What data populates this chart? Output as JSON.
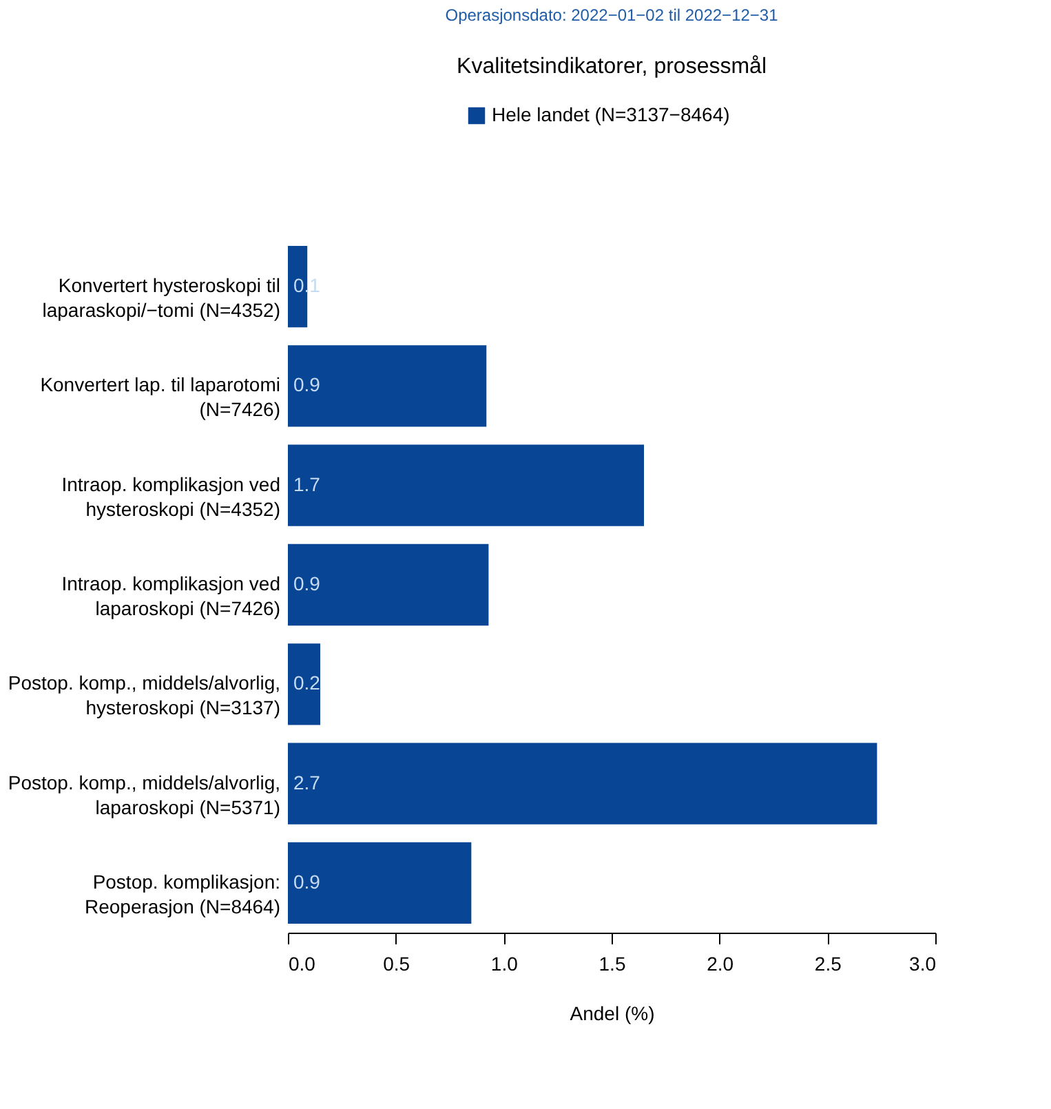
{
  "chart_data": {
    "type": "bar",
    "orientation": "horizontal",
    "title": "Kvalitetsindikatorer, prosessmål",
    "annotations": [
      "Operasjonsdato: 2022−01−02 til 2022−12−31"
    ],
    "xlabel": "Andel (%)",
    "categories": [
      "Konvertert hysteroskopi til\nlaparaskopi/−tomi (N=4352)",
      "Konvertert lap. til laparotomi\n(N=7426)",
      "Intraop. komplikasjon ved\nhysteroskopi (N=4352)",
      "Intraop. komplikasjon ved\nlaparoskopi (N=7426)",
      "Postop. komp., middels/alvorlig,\nhysteroskopi (N=3137)",
      "Postop. komp., middels/alvorlig,\nlaparoskopi (N=5371)",
      "Postop. komplikasjon:\nReoperasjon (N=8464)"
    ],
    "series": [
      {
        "name": "Hele landet (N=3137−8464)",
        "color": "#084594",
        "values": [
          0.09,
          0.92,
          1.65,
          0.93,
          0.15,
          2.73,
          0.85
        ],
        "value_labels": [
          "0.1",
          "0.9",
          "1.7",
          "0.9",
          "0.2",
          "2.7",
          "0.9"
        ]
      }
    ],
    "xlim": [
      0,
      3
    ],
    "xticks": [
      {
        "value": 0,
        "label": "0.0"
      },
      {
        "value": 0.5,
        "label": "0.5"
      },
      {
        "value": 1,
        "label": "1.0"
      },
      {
        "value": 1.5,
        "label": "1.5"
      },
      {
        "value": 2,
        "label": "2.0"
      },
      {
        "value": 2.5,
        "label": "2.5"
      },
      {
        "value": 3,
        "label": "3.0"
      }
    ],
    "grid": false,
    "legend": "top"
  }
}
